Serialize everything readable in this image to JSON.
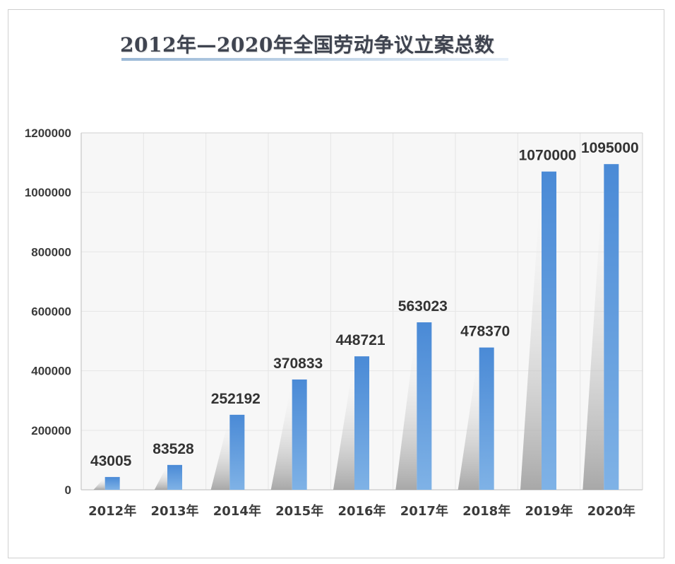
{
  "chart_data": {
    "type": "bar",
    "title": "2012年—2020年全国劳动争议立案总数",
    "categories": [
      "2012年",
      "2013年",
      "2014年",
      "2015年",
      "2016年",
      "2017年",
      "2018年",
      "2019年",
      "2020年"
    ],
    "values": [
      43005,
      83528,
      252192,
      370833,
      448721,
      563023,
      478370,
      1070000,
      1095000
    ],
    "data_labels": [
      "43005",
      "83528",
      "252192",
      "370833",
      "448721",
      "563023",
      "478370",
      "1070000",
      "1095000"
    ],
    "y_ticks": [
      "0",
      "200000",
      "400000",
      "600000",
      "800000",
      "1000000",
      "1200000"
    ],
    "ylim": [
      0,
      1200000
    ],
    "xlabel": "",
    "ylabel": "",
    "grid": true,
    "legend": "none",
    "colors": {
      "bar_top": "#4a8ad6",
      "bar_bottom": "#7fb2e6",
      "grid": "#e6e6e6",
      "axis": "#d0d0d0",
      "plot_background": "#f7f7f7"
    }
  }
}
